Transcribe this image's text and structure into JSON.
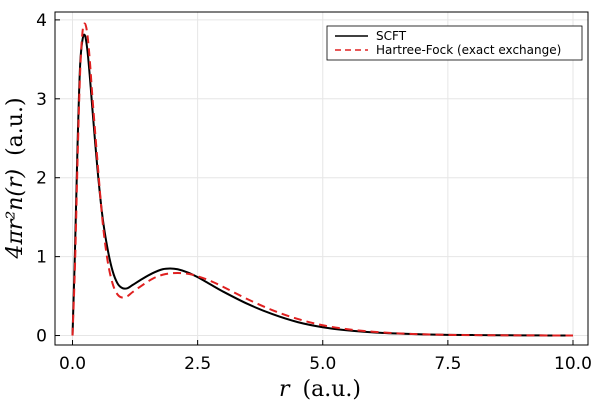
{
  "chart_data": {
    "type": "line",
    "xlabel": "r (a.u.)",
    "ylabel": "4πr²n(r) (a.u.)",
    "xlim": [
      -0.35,
      10.3
    ],
    "ylim": [
      -0.12,
      4.1
    ],
    "xticks": [
      0.0,
      2.5,
      5.0,
      7.5,
      10.0
    ],
    "xtick_labels": [
      "0.0",
      "2.5",
      "5.0",
      "7.5",
      "10.0"
    ],
    "yticks": [
      0,
      1,
      2,
      3,
      4
    ],
    "ytick_labels": [
      "0",
      "1",
      "2",
      "3",
      "4"
    ],
    "grid": true,
    "legend_position": "top-right",
    "series": [
      {
        "name": "SCFT",
        "color": "#000000",
        "dash": "solid",
        "x": [
          0.0,
          0.05,
          0.1,
          0.15,
          0.2,
          0.25,
          0.3,
          0.35,
          0.4,
          0.5,
          0.6,
          0.7,
          0.8,
          0.9,
          1.0,
          1.1,
          1.2,
          1.4,
          1.6,
          1.8,
          1.95,
          2.1,
          2.3,
          2.5,
          2.75,
          3.0,
          3.5,
          4.0,
          4.5,
          5.0,
          5.5,
          6.0,
          6.5,
          7.0,
          7.5,
          8.0,
          8.5,
          9.0,
          9.5,
          10.0
        ],
        "y": [
          0.0,
          1.1,
          2.4,
          3.4,
          3.75,
          3.8,
          3.6,
          3.25,
          2.85,
          2.1,
          1.5,
          1.1,
          0.82,
          0.66,
          0.6,
          0.6,
          0.64,
          0.72,
          0.79,
          0.84,
          0.85,
          0.84,
          0.8,
          0.74,
          0.65,
          0.56,
          0.4,
          0.27,
          0.17,
          0.105,
          0.065,
          0.04,
          0.025,
          0.015,
          0.009,
          0.006,
          0.004,
          0.002,
          0.001,
          0.0
        ]
      },
      {
        "name": "Hartree-Fock (exact exchange)",
        "color": "#e02020",
        "dash": "dashed",
        "x": [
          0.0,
          0.05,
          0.1,
          0.15,
          0.2,
          0.25,
          0.3,
          0.35,
          0.4,
          0.5,
          0.6,
          0.7,
          0.8,
          0.9,
          1.0,
          1.1,
          1.2,
          1.4,
          1.6,
          1.8,
          2.0,
          2.2,
          2.4,
          2.6,
          2.8,
          3.0,
          3.5,
          4.0,
          4.5,
          5.0,
          5.5,
          6.0,
          6.5,
          7.0,
          7.5,
          8.0,
          8.5,
          9.0,
          9.5,
          10.0
        ],
        "y": [
          0.0,
          0.9,
          2.2,
          3.3,
          3.85,
          3.95,
          3.8,
          3.45,
          3.0,
          2.2,
          1.45,
          0.95,
          0.66,
          0.52,
          0.48,
          0.5,
          0.55,
          0.64,
          0.72,
          0.77,
          0.79,
          0.79,
          0.77,
          0.73,
          0.68,
          0.62,
          0.46,
          0.32,
          0.21,
          0.13,
          0.08,
          0.048,
          0.028,
          0.016,
          0.009,
          0.005,
          0.003,
          0.002,
          0.001,
          0.0
        ]
      }
    ]
  }
}
